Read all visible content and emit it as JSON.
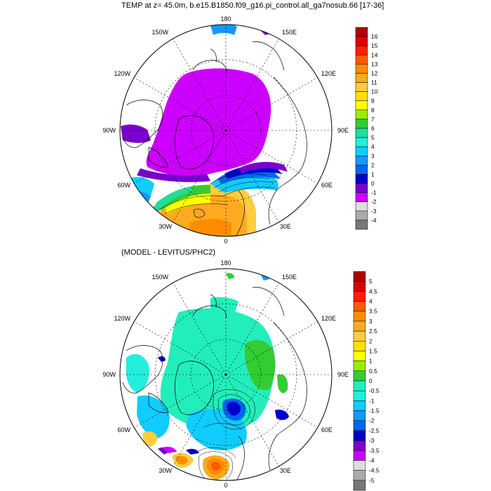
{
  "top": {
    "title": "TEMP at z=  45.0m, b.e15.B1850.f09_g16.pi_control.all_ga7nosub.66 [17-36]",
    "lon_labels": {
      "n": "180",
      "nw": "150W",
      "ne": "150E",
      "wnw": "120W",
      "ene": "120E",
      "w": "90W",
      "e": "90E",
      "wsw": "60W",
      "ese": "60E",
      "sw": "30W",
      "se": "30E",
      "s": "0"
    },
    "colorbar": {
      "labels": [
        "16",
        "15",
        "14",
        "13",
        "12",
        "11",
        "10",
        "9",
        "8",
        "7",
        "6",
        "5",
        "4",
        "3",
        "2",
        "1",
        "0",
        "-1",
        "-2",
        "-3",
        "-4"
      ],
      "colors": [
        "#b30000",
        "#dd0000",
        "#ff2000",
        "#ff5a00",
        "#ff8c00",
        "#ffaa20",
        "#ffcc40",
        "#ffe000",
        "#ffff00",
        "#99ee00",
        "#33cc33",
        "#22dd99",
        "#22eedd",
        "#11ccff",
        "#1199ff",
        "#0066ee",
        "#0000cc",
        "#7a00cc",
        "#cc00ff",
        "#dddddd",
        "#aaaaaa",
        "#777777"
      ]
    }
  },
  "bottom": {
    "title": "(MODEL - LEVITUS/PHC2)",
    "lon_labels": {
      "n": "180",
      "nw": "150W",
      "ne": "150E",
      "wnw": "120W",
      "ene": "120E",
      "w": "90W",
      "e": "90E",
      "wsw": "60W",
      "ese": "60E",
      "sw": "30W",
      "se": "30E",
      "s": "0"
    },
    "colorbar": {
      "labels": [
        "5",
        "4.5",
        "4",
        "3.5",
        "3",
        "2.5",
        "2",
        "1.5",
        "1",
        "0.5",
        "0",
        "-0.5",
        "-1",
        "-1.5",
        "-2",
        "-2.5",
        "-3",
        "-3.5",
        "-4",
        "-4.5",
        "-5"
      ],
      "colors": [
        "#b30000",
        "#dd0000",
        "#ff2000",
        "#ff5a00",
        "#ff8c00",
        "#ffaa20",
        "#ffcc40",
        "#ffe000",
        "#ffff00",
        "#99ee00",
        "#33cc33",
        "#22eebb",
        "#22eedd",
        "#11ccff",
        "#1199ff",
        "#0066ee",
        "#0000cc",
        "#7a00cc",
        "#cc00ff",
        "#dddddd",
        "#aaaaaa",
        "#777777"
      ]
    }
  }
}
